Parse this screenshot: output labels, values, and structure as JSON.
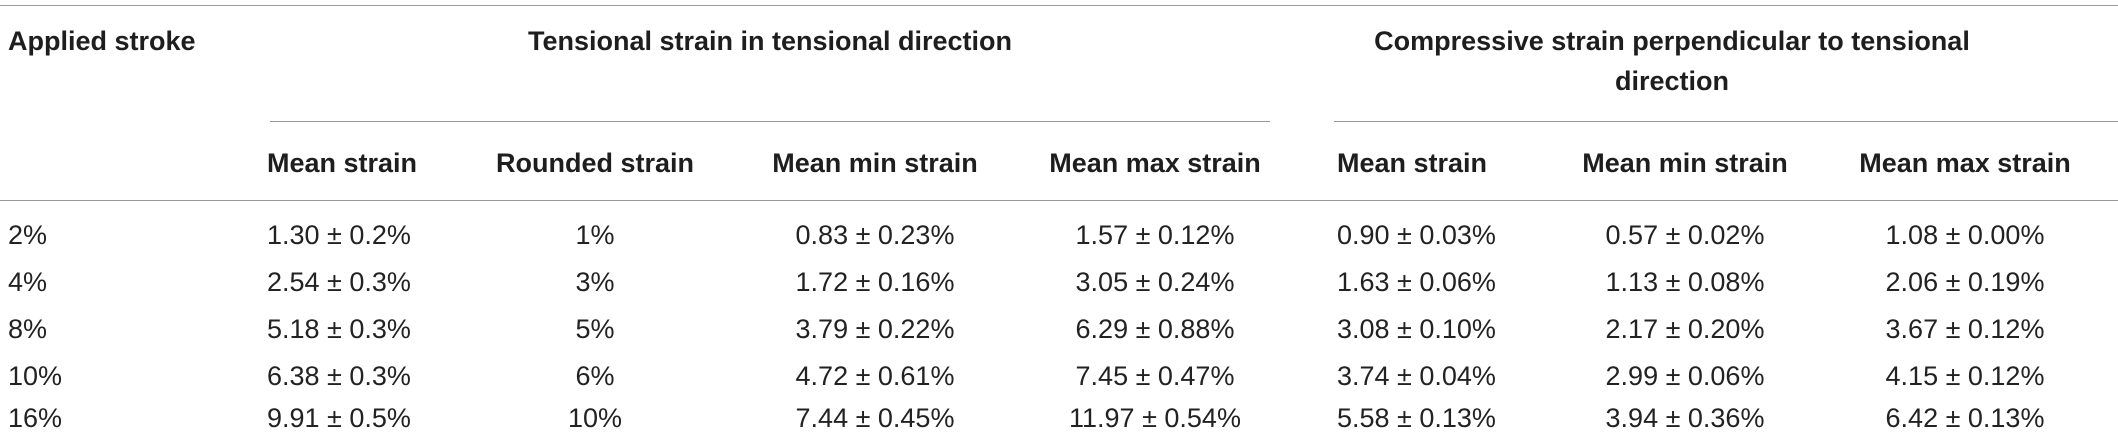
{
  "table": {
    "first_column_header": "Applied stroke",
    "groups": [
      {
        "title": "Tensional strain in tensional direction",
        "columns": [
          "Mean strain",
          "Rounded strain",
          "Mean min strain",
          "Mean max strain"
        ]
      },
      {
        "title": "Compressive strain perpendicular to tensional direction",
        "columns": [
          "Mean strain",
          "Mean min strain",
          "Mean max strain"
        ]
      }
    ],
    "rows": [
      [
        "2%",
        "1.30 ± 0.2%",
        "1%",
        "0.83 ± 0.23%",
        "1.57 ± 0.12%",
        "0.90 ± 0.03%",
        "0.57 ± 0.02%",
        "1.08 ± 0.00%"
      ],
      [
        "4%",
        "2.54 ± 0.3%",
        "3%",
        "1.72 ± 0.16%",
        "3.05 ± 0.24%",
        "1.63 ± 0.06%",
        "1.13 ± 0.08%",
        "2.06 ± 0.19%"
      ],
      [
        "8%",
        "5.18 ± 0.3%",
        "5%",
        "3.79 ± 0.22%",
        "6.29 ± 0.88%",
        "3.08 ± 0.10%",
        "2.17 ± 0.20%",
        "3.67 ± 0.12%"
      ],
      [
        "10%",
        "6.38 ± 0.3%",
        "6%",
        "4.72 ± 0.61%",
        "7.45 ± 0.47%",
        "3.74 ± 0.04%",
        "2.99 ± 0.06%",
        "4.15 ± 0.12%"
      ],
      [
        "16%",
        "9.91 ± 0.5%",
        "10%",
        "7.44 ± 0.45%",
        "11.97 ± 0.54%",
        "5.58 ± 0.13%",
        "3.94 ± 0.36%",
        "6.42 ± 0.13%"
      ]
    ]
  }
}
